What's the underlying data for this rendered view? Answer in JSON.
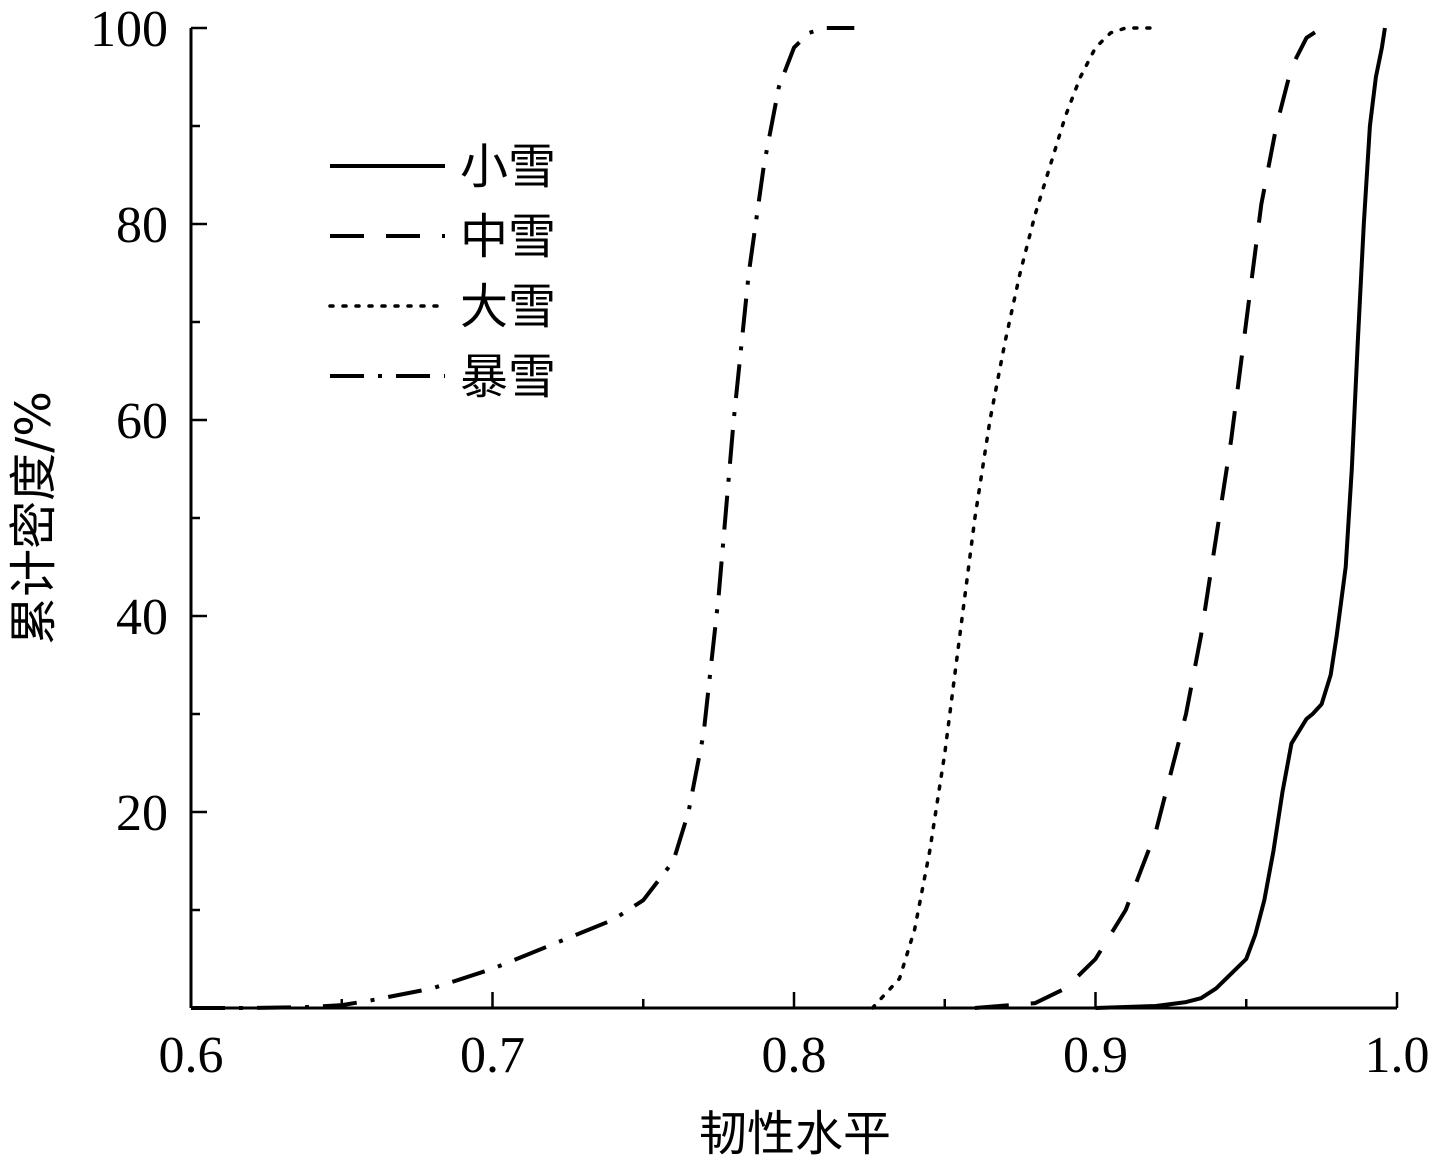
{
  "chart_data": {
    "type": "line",
    "title": "",
    "xlabel": "韧性水平",
    "ylabel": "累计密度/%",
    "xlim": [
      0.6,
      1.0
    ],
    "ylim": [
      0,
      100
    ],
    "x_ticks": [
      "0.6",
      "0.7",
      "0.8",
      "0.9",
      "1.0"
    ],
    "y_ticks": [
      "20",
      "40",
      "60",
      "80",
      "100"
    ],
    "grid": false,
    "legend_position": "upper-left",
    "line_color": "#000000",
    "series": [
      {
        "name": "小雪",
        "style": "solid",
        "x": [
          0.9,
          0.92,
          0.93,
          0.935,
          0.94,
          0.945,
          0.95,
          0.953,
          0.956,
          0.959,
          0.962,
          0.965,
          0.968,
          0.97,
          0.972,
          0.975,
          0.978,
          0.98,
          0.983,
          0.985,
          0.987,
          0.989,
          0.991,
          0.993,
          0.995,
          0.996
        ],
        "y": [
          0,
          0.2,
          0.6,
          1.0,
          2.0,
          3.5,
          5.0,
          7.5,
          11,
          16,
          22,
          27,
          28.5,
          29.5,
          30,
          31,
          34,
          38,
          45,
          55,
          68,
          80,
          90,
          95,
          98,
          100
        ]
      },
      {
        "name": "中雪",
        "style": "dashed",
        "x": [
          0.86,
          0.88,
          0.89,
          0.9,
          0.91,
          0.92,
          0.93,
          0.935,
          0.94,
          0.945,
          0.95,
          0.955,
          0.96,
          0.965,
          0.97,
          0.975
        ],
        "y": [
          0,
          0.5,
          2,
          5,
          10,
          18,
          30,
          38,
          48,
          58,
          70,
          82,
          90,
          96,
          99,
          100
        ]
      },
      {
        "name": "大雪",
        "style": "dotted",
        "x": [
          0.826,
          0.835,
          0.84,
          0.845,
          0.85,
          0.855,
          0.86,
          0.865,
          0.87,
          0.875,
          0.88,
          0.885,
          0.89,
          0.895,
          0.9,
          0.905,
          0.91,
          0.915,
          0.92
        ],
        "y": [
          0,
          3,
          8,
          16,
          26,
          38,
          50,
          60,
          68,
          75,
          81,
          86,
          91,
          95,
          98,
          99.5,
          100,
          100,
          100
        ]
      },
      {
        "name": "暴雪",
        "style": "dashdot",
        "x": [
          0.6,
          0.62,
          0.64,
          0.65,
          0.66,
          0.68,
          0.7,
          0.72,
          0.74,
          0.75,
          0.76,
          0.765,
          0.77,
          0.775,
          0.78,
          0.785,
          0.79,
          0.795,
          0.8,
          0.805,
          0.81,
          0.82
        ],
        "y": [
          0,
          0,
          0.1,
          0.3,
          0.8,
          2,
          4,
          6.5,
          9,
          11,
          15,
          20,
          28,
          42,
          60,
          75,
          86,
          94,
          98,
          99.5,
          100,
          100
        ]
      }
    ]
  }
}
